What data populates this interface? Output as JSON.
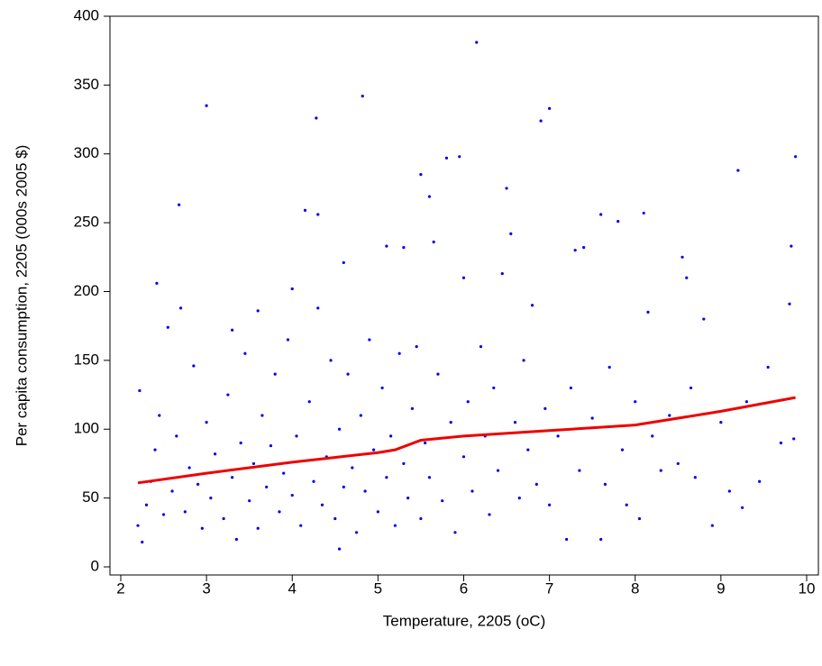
{
  "chart_data": {
    "type": "scatter",
    "xlabel": "Temperature, 2205 (oC)",
    "ylabel": "Per capita consumption, 2205 (000s 2005 $)",
    "xlim": [
      1.874,
      10.137
    ],
    "ylim": [
      -5.9,
      400
    ],
    "xticks": [
      2,
      3,
      4,
      5,
      6,
      7,
      8,
      9,
      10
    ],
    "yticks": [
      0,
      50,
      100,
      150,
      200,
      250,
      300,
      350,
      400
    ],
    "grid": false,
    "series": [
      {
        "type": "scatter",
        "color": "#0000ee",
        "x": [
          2.2,
          2.25,
          2.22,
          2.3,
          2.35,
          2.4,
          2.42,
          2.45,
          2.5,
          2.55,
          2.6,
          2.65,
          2.68,
          2.7,
          2.75,
          2.8,
          2.85,
          2.9,
          2.95,
          3.0,
          3.0,
          3.05,
          3.1,
          3.2,
          3.25,
          3.3,
          3.3,
          3.35,
          3.4,
          3.45,
          3.5,
          3.55,
          3.6,
          3.6,
          3.65,
          3.7,
          3.75,
          3.8,
          3.85,
          3.9,
          3.95,
          4.0,
          4.0,
          4.05,
          4.1,
          4.15,
          4.2,
          4.25,
          4.28,
          4.3,
          4.3,
          4.35,
          4.4,
          4.45,
          4.5,
          4.55,
          4.55,
          4.6,
          4.6,
          4.65,
          4.7,
          4.75,
          4.8,
          4.82,
          4.85,
          4.9,
          4.95,
          5.0,
          5.05,
          5.1,
          5.1,
          5.15,
          5.2,
          5.25,
          5.3,
          5.3,
          5.35,
          5.4,
          5.45,
          5.5,
          5.5,
          5.55,
          5.6,
          5.6,
          5.65,
          5.7,
          5.75,
          5.8,
          5.85,
          5.9,
          5.95,
          6.0,
          6.0,
          6.05,
          6.1,
          6.15,
          6.2,
          6.25,
          6.3,
          6.35,
          6.4,
          6.45,
          6.5,
          6.55,
          6.6,
          6.65,
          6.7,
          6.75,
          6.8,
          6.85,
          6.9,
          6.95,
          7.0,
          7.0,
          7.1,
          7.2,
          7.25,
          7.3,
          7.35,
          7.4,
          7.5,
          7.6,
          7.6,
          7.65,
          7.7,
          7.8,
          7.85,
          7.9,
          8.0,
          8.05,
          8.1,
          8.15,
          8.2,
          8.3,
          8.4,
          8.5,
          8.55,
          8.6,
          8.65,
          8.7,
          8.8,
          8.9,
          9.0,
          9.1,
          9.2,
          9.25,
          9.3,
          9.45,
          9.55,
          9.7,
          9.8,
          9.82,
          9.85,
          9.87
        ],
        "values": [
          30,
          18,
          128,
          45,
          62,
          85,
          206,
          110,
          38,
          174,
          55,
          95,
          263,
          188,
          40,
          72,
          146,
          60,
          28,
          335,
          105,
          50,
          82,
          35,
          125,
          172,
          65,
          20,
          90,
          155,
          48,
          75,
          186,
          28,
          110,
          58,
          88,
          140,
          40,
          68,
          165,
          202,
          52,
          95,
          30,
          259,
          120,
          62,
          326,
          256,
          188,
          45,
          80,
          150,
          35,
          13,
          100,
          221,
          58,
          140,
          72,
          25,
          110,
          342,
          55,
          165,
          85,
          40,
          130,
          233,
          65,
          95,
          30,
          155,
          232,
          75,
          50,
          115,
          160,
          285,
          35,
          90,
          269,
          65,
          236,
          140,
          48,
          297,
          105,
          25,
          298,
          210,
          80,
          120,
          55,
          381,
          160,
          95,
          38,
          130,
          70,
          213,
          275,
          242,
          105,
          50,
          150,
          85,
          190,
          60,
          324,
          115,
          333,
          45,
          95,
          20,
          130,
          230,
          70,
          232,
          108,
          20,
          256,
          60,
          145,
          251,
          85,
          45,
          120,
          35,
          257,
          185,
          95,
          70,
          110,
          75,
          225,
          210,
          130,
          65,
          180,
          30,
          105,
          55,
          288,
          43,
          120,
          62,
          145,
          90,
          191,
          233,
          93,
          298
        ]
      },
      {
        "type": "line",
        "color": "#ee0000",
        "x": [
          2.2,
          3,
          4,
          5,
          5.2,
          5.5,
          6,
          7,
          8,
          9,
          9.87
        ],
        "values": [
          61,
          68,
          76,
          83,
          85,
          92,
          95,
          99,
          103,
          113,
          123
        ]
      }
    ]
  }
}
